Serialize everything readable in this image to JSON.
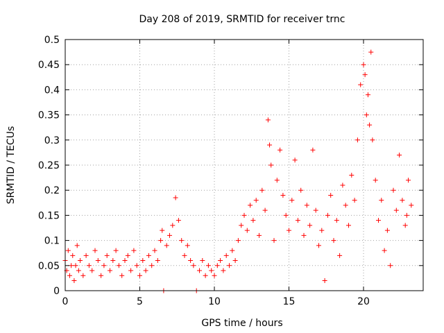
{
  "chart_data": {
    "type": "scatter",
    "title": "Day 208 of 2019, SRMTID for receiver trnc",
    "xlabel": "GPS time / hours",
    "ylabel": "SRMTID / TECUs",
    "xlim": [
      0,
      24
    ],
    "ylim": [
      0,
      0.5
    ],
    "x_ticks": [
      "0",
      "5",
      "10",
      "15",
      "20"
    ],
    "y_ticks": [
      "0",
      "0.05",
      "0.1",
      "0.15",
      "0.2",
      "0.25",
      "0.3",
      "0.35",
      "0.4",
      "0.45",
      "0.5"
    ],
    "grid": true,
    "legend": false,
    "marker": "+",
    "color": "#ff0000",
    "series": [
      {
        "points": [
          [
            0.0,
            0.06
          ],
          [
            0.1,
            0.04
          ],
          [
            0.2,
            0.08
          ],
          [
            0.3,
            0.03
          ],
          [
            0.4,
            0.05
          ],
          [
            0.5,
            0.07
          ],
          [
            0.6,
            0.02
          ],
          [
            0.7,
            0.05
          ],
          [
            0.8,
            0.09
          ],
          [
            0.9,
            0.04
          ],
          [
            1.0,
            0.06
          ],
          [
            1.2,
            0.03
          ],
          [
            1.4,
            0.07
          ],
          [
            1.6,
            0.05
          ],
          [
            1.8,
            0.04
          ],
          [
            2.0,
            0.08
          ],
          [
            2.2,
            0.06
          ],
          [
            2.4,
            0.03
          ],
          [
            2.6,
            0.05
          ],
          [
            2.8,
            0.07
          ],
          [
            3.0,
            0.04
          ],
          [
            3.2,
            0.06
          ],
          [
            3.4,
            0.08
          ],
          [
            3.6,
            0.05
          ],
          [
            3.8,
            0.03
          ],
          [
            4.0,
            0.06
          ],
          [
            4.2,
            0.07
          ],
          [
            4.4,
            0.04
          ],
          [
            4.6,
            0.08
          ],
          [
            4.8,
            0.05
          ],
          [
            5.0,
            0.03
          ],
          [
            5.2,
            0.06
          ],
          [
            5.4,
            0.04
          ],
          [
            5.6,
            0.07
          ],
          [
            5.8,
            0.05
          ],
          [
            6.0,
            0.08
          ],
          [
            6.2,
            0.06
          ],
          [
            6.4,
            0.1
          ],
          [
            6.5,
            0.12
          ],
          [
            6.6,
            0.0
          ],
          [
            6.8,
            0.09
          ],
          [
            7.0,
            0.11
          ],
          [
            7.2,
            0.13
          ],
          [
            7.4,
            0.185
          ],
          [
            7.6,
            0.14
          ],
          [
            7.8,
            0.1
          ],
          [
            8.0,
            0.07
          ],
          [
            8.2,
            0.09
          ],
          [
            8.4,
            0.06
          ],
          [
            8.6,
            0.05
          ],
          [
            8.8,
            0.0
          ],
          [
            9.0,
            0.04
          ],
          [
            9.2,
            0.06
          ],
          [
            9.4,
            0.03
          ],
          [
            9.6,
            0.05
          ],
          [
            9.8,
            0.04
          ],
          [
            10.0,
            0.03
          ],
          [
            10.2,
            0.05
          ],
          [
            10.4,
            0.06
          ],
          [
            10.6,
            0.04
          ],
          [
            10.8,
            0.07
          ],
          [
            11.0,
            0.05
          ],
          [
            11.2,
            0.08
          ],
          [
            11.4,
            0.06
          ],
          [
            11.6,
            0.1
          ],
          [
            11.8,
            0.13
          ],
          [
            12.0,
            0.15
          ],
          [
            12.2,
            0.12
          ],
          [
            12.4,
            0.17
          ],
          [
            12.6,
            0.14
          ],
          [
            12.8,
            0.18
          ],
          [
            13.0,
            0.11
          ],
          [
            13.2,
            0.2
          ],
          [
            13.4,
            0.16
          ],
          [
            13.6,
            0.34
          ],
          [
            13.7,
            0.29
          ],
          [
            13.8,
            0.25
          ],
          [
            14.0,
            0.1
          ],
          [
            14.2,
            0.22
          ],
          [
            14.4,
            0.28
          ],
          [
            14.6,
            0.19
          ],
          [
            14.8,
            0.15
          ],
          [
            15.0,
            0.12
          ],
          [
            15.2,
            0.18
          ],
          [
            15.4,
            0.26
          ],
          [
            15.6,
            0.14
          ],
          [
            15.8,
            0.2
          ],
          [
            16.0,
            0.11
          ],
          [
            16.2,
            0.17
          ],
          [
            16.4,
            0.13
          ],
          [
            16.6,
            0.28
          ],
          [
            16.8,
            0.16
          ],
          [
            17.0,
            0.09
          ],
          [
            17.2,
            0.12
          ],
          [
            17.4,
            0.02
          ],
          [
            17.6,
            0.15
          ],
          [
            17.8,
            0.19
          ],
          [
            18.0,
            0.1
          ],
          [
            18.2,
            0.14
          ],
          [
            18.4,
            0.07
          ],
          [
            18.6,
            0.21
          ],
          [
            18.8,
            0.17
          ],
          [
            19.0,
            0.13
          ],
          [
            19.2,
            0.23
          ],
          [
            19.4,
            0.18
          ],
          [
            19.6,
            0.3
          ],
          [
            19.8,
            0.41
          ],
          [
            20.0,
            0.45
          ],
          [
            20.1,
            0.43
          ],
          [
            20.2,
            0.35
          ],
          [
            20.3,
            0.39
          ],
          [
            20.4,
            0.33
          ],
          [
            20.5,
            0.475
          ],
          [
            20.6,
            0.3
          ],
          [
            20.8,
            0.22
          ],
          [
            21.0,
            0.14
          ],
          [
            21.2,
            0.18
          ],
          [
            21.4,
            0.08
          ],
          [
            21.6,
            0.12
          ],
          [
            21.8,
            0.05
          ],
          [
            22.0,
            0.2
          ],
          [
            22.2,
            0.16
          ],
          [
            22.4,
            0.27
          ],
          [
            22.6,
            0.18
          ],
          [
            22.8,
            0.13
          ],
          [
            22.9,
            0.15
          ],
          [
            23.0,
            0.22
          ],
          [
            23.2,
            0.17
          ]
        ]
      }
    ]
  }
}
